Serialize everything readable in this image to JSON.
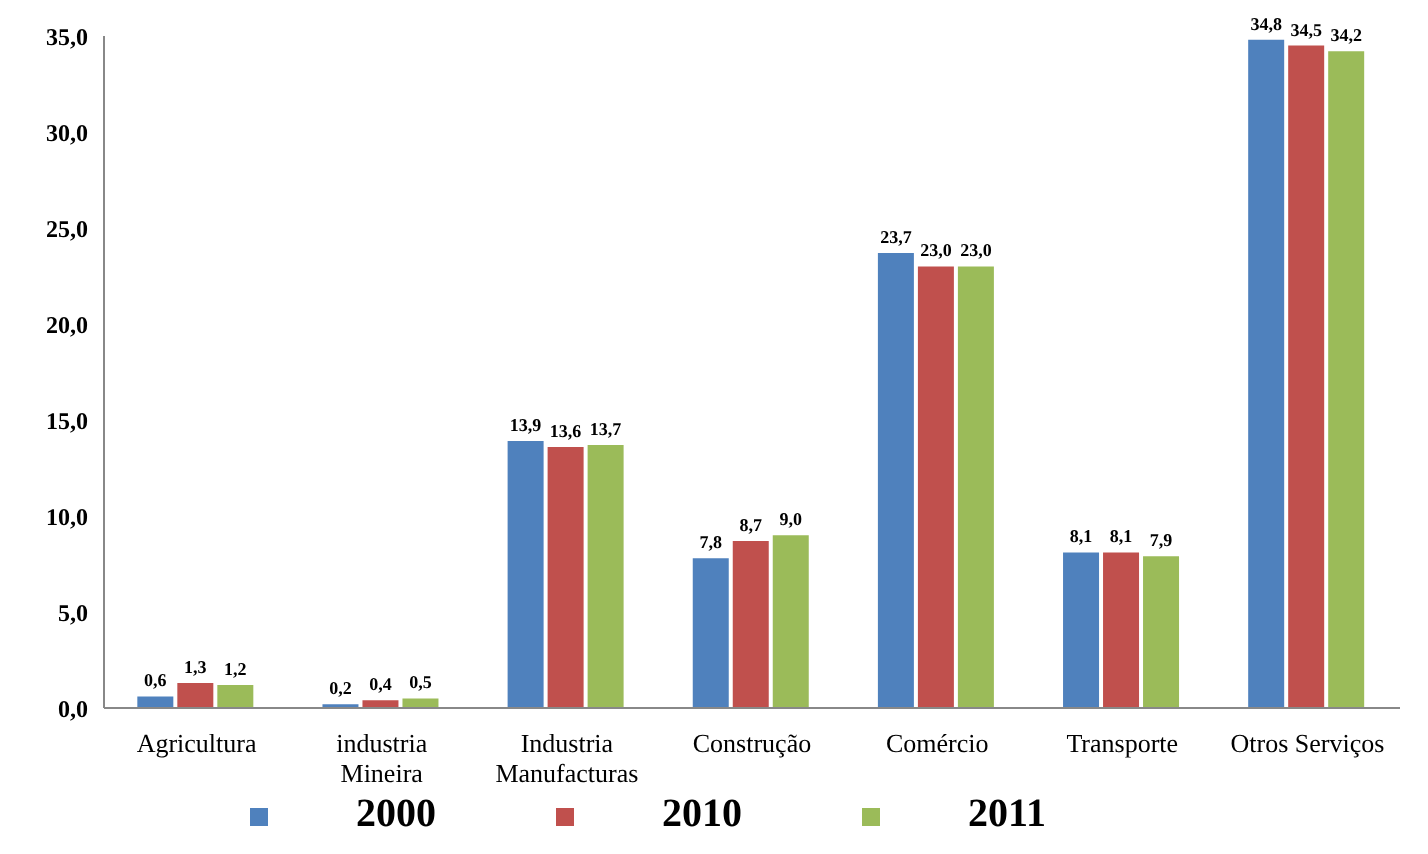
{
  "chart_data": {
    "type": "bar",
    "categories": [
      "Agricultura",
      "industria Mineira",
      "Industria Manufacturas",
      "Construção",
      "Comércio",
      "Transporte",
      "Otros Serviços"
    ],
    "series": [
      {
        "name": "2000",
        "color": "#4f81bd",
        "values": [
          0.6,
          0.2,
          13.9,
          7.8,
          23.7,
          8.1,
          34.8
        ],
        "value_labels": [
          "0,6",
          "0,2",
          "13,9",
          "7,8",
          "23,7",
          "8,1",
          "34,8"
        ]
      },
      {
        "name": "2010",
        "color": "#c0504d",
        "values": [
          1.3,
          0.4,
          13.6,
          8.7,
          23.0,
          8.1,
          34.5
        ],
        "value_labels": [
          "1,3",
          "0,4",
          "13,6",
          "8,7",
          "23,0",
          "8,1",
          "34,5"
        ]
      },
      {
        "name": "2011",
        "color": "#9bbb59",
        "values": [
          1.2,
          0.5,
          13.7,
          9.0,
          23.0,
          7.9,
          34.2
        ],
        "value_labels": [
          "1,2",
          "0,5",
          "13,7",
          "9,0",
          "23,0",
          "7,9",
          "34,2"
        ]
      }
    ],
    "ylim": [
      0,
      35
    ],
    "yticks": [
      {
        "value": 0,
        "label": "0,0"
      },
      {
        "value": 5,
        "label": "5,0"
      },
      {
        "value": 10,
        "label": "10,0"
      },
      {
        "value": 15,
        "label": "15,0"
      },
      {
        "value": 20,
        "label": "20,0"
      },
      {
        "value": 25,
        "label": "25,0"
      },
      {
        "value": 30,
        "label": "30,0"
      },
      {
        "value": 35,
        "label": "35,0"
      }
    ],
    "legend": "bottom",
    "grid": false
  }
}
